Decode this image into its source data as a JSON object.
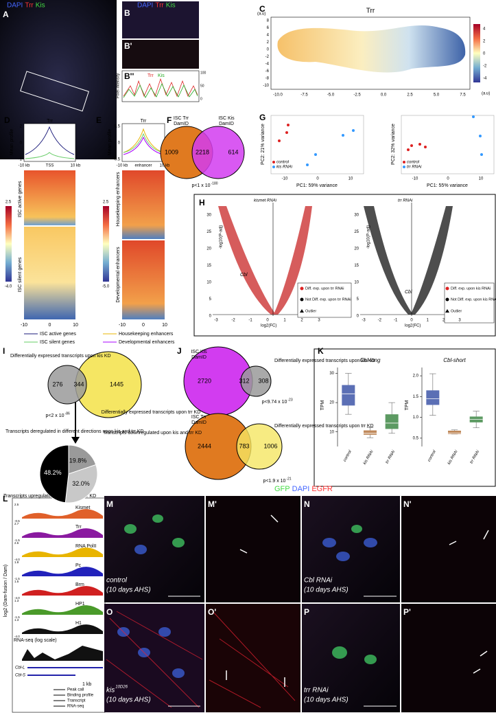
{
  "panel_labels": {
    "A": "A",
    "B": "B",
    "B1": "B'",
    "B2": "B''",
    "C": "C",
    "D": "D",
    "E": "E",
    "F": "F",
    "G": "G",
    "H": "H",
    "I": "I",
    "J": "J",
    "K": "K",
    "L": "L",
    "M": "M",
    "M1": "M'",
    "N": "N",
    "N1": "N'",
    "O": "O",
    "O1": "O'",
    "P": "P",
    "P1": "P'"
  },
  "stain_a": [
    "DAPI",
    "Trr",
    "Kis"
  ],
  "stain_b": [
    "DAPI",
    "Trr",
    "Kis"
  ],
  "b2": {
    "ylabel": "Pixel intensity",
    "legend": [
      "Trr",
      "Kis"
    ],
    "ticks": [
      "100",
      "50",
      "0"
    ]
  },
  "c": {
    "title": "Trr",
    "unit_y": "(a.u)",
    "unit_x": "(a.u)",
    "yticks": [
      "8",
      "6",
      "4",
      "2",
      "0",
      "-2",
      "-4",
      "-6",
      "-8",
      "-10"
    ],
    "xticks": [
      "-10.0",
      "-7.5",
      "-5.0",
      "-2.5",
      "0.0",
      "2.5",
      "5.0",
      "7.5"
    ],
    "colorbar": [
      "4",
      "2",
      "0",
      "-2",
      "-4"
    ]
  },
  "d": {
    "title": "Trr",
    "ylabel": "Mean profile",
    "yticks": [
      "2",
      "0",
      "-1"
    ],
    "xticks": [
      "-10 kb",
      "TSS",
      "10 kb"
    ],
    "colorbar": [
      "2.5",
      "-4.0"
    ],
    "row_labels": [
      "ISC active genes",
      "ISC silent genes"
    ],
    "heat_xticks": [
      "-10",
      "0",
      "10"
    ],
    "legend": [
      "ISC active genes",
      "ISC silent genes"
    ]
  },
  "e": {
    "title": "Trr",
    "ylabel": "Mean profile",
    "yticks": [
      "0.5",
      "0",
      "-0.5"
    ],
    "xticks": [
      "-10 kb",
      "enhancer",
      "10 kb"
    ],
    "colorbar": [
      "2.5",
      "-5.0"
    ],
    "row_labels": [
      "Housekeeping enhancers",
      "Developmental enhancers"
    ],
    "heat_xticks": [
      "-10",
      "0",
      "10"
    ],
    "legend": [
      "Housekeeping enhancers",
      "Developmental enhancers"
    ]
  },
  "f": {
    "left": [
      "ISC Trr",
      "DamID"
    ],
    "right": [
      "ISC Kis",
      "DamID"
    ],
    "counts": [
      "1009",
      "2218",
      "614"
    ],
    "p": {
      "base": "p<1 x 10",
      "exp": "-180"
    }
  },
  "g": [
    {
      "ylabel": "PC2: 21% variance",
      "xlabel": "PC1: 59% variance",
      "xticks": [
        "-10",
        "0",
        "10"
      ],
      "legend": [
        "control",
        "kis RNAi"
      ]
    },
    {
      "ylabel": "PC2: 32% variance",
      "xlabel": "PC1: 55% variance",
      "xticks": [
        "-10",
        "0",
        "10"
      ],
      "legend": [
        "control",
        "trr RNAi"
      ]
    }
  ],
  "h": [
    {
      "title": "kismet RNAi",
      "gene": "Cbl",
      "ylabel": "-log10(P-adj)",
      "xlabel": "log2(FC)",
      "yticks": [
        "30",
        "25",
        "20",
        "15",
        "10",
        "5",
        "0"
      ],
      "xticks": [
        "-3",
        "-2",
        "-1",
        "0",
        "1",
        "2",
        "3"
      ],
      "legend": [
        "Diff. exp. upon trr RNAi",
        "Not Diff. exp. upon trr RNAi",
        "Outlier"
      ]
    },
    {
      "title": "trr RNAi",
      "gene": "Cbl",
      "ylabel": "-log10(P-adj)",
      "xlabel": "log2(FC)",
      "yticks": [
        "30",
        "25",
        "20",
        "15",
        "10",
        "5",
        "0"
      ],
      "xticks": [
        "-3",
        "-2",
        "-1",
        "0",
        "1",
        "2",
        "3"
      ],
      "legend": [
        "Diff. exp. upon kis RNAi",
        "Not Diff. exp. upon kis RNAi",
        "Outlier"
      ]
    }
  ],
  "i": {
    "left": "Differentially expressed transcripts upon kis KD",
    "right": "Differentially expressed transcripts upon trr KD",
    "counts": [
      "276",
      "344",
      "1445"
    ],
    "p": {
      "base": "p<2 x 10",
      "exp": "-86"
    },
    "pie_labels": [
      "Transcripts deregulated in different directions upon kis and trr KD",
      "Transcripts upregulated upon kis and trr KD",
      "Transcripts downregulated upon kis and trr KD"
    ],
    "pie": {
      "values": [
        19.8,
        32.0,
        48.2
      ],
      "value_labels": [
        "19.8%",
        "32.0%",
        "48.2%"
      ],
      "colors": [
        "#9a9a9a",
        "#c8c8c8",
        "#000000"
      ]
    }
  },
  "j": {
    "top": {
      "left": [
        "ISC Kis",
        "DamID"
      ],
      "right": "Differentially expressed transcripts upon kis KD",
      "counts": [
        "2720",
        "312",
        "308"
      ],
      "p": {
        "base": "p<9.74 x 10",
        "exp": "-23"
      }
    },
    "bottom": {
      "left": [
        "ISC Trr",
        "DamID"
      ],
      "right": "Differentially expressed transcripts upon trr KD",
      "counts": [
        "2444",
        "783",
        "1006"
      ],
      "p": {
        "base": "p<1.9 x 10",
        "exp": "-21"
      }
    }
  },
  "k": {
    "categories": [
      "control",
      "kis RNAi",
      "trr RNAi"
    ],
    "colors": [
      "#5b6fb5",
      "#c08a5c",
      "#5c9a62"
    ],
    "plots": [
      {
        "title": "Cbl-long",
        "ylabel": "TPM",
        "ylim": [
          5,
          32
        ],
        "yticks": [
          10,
          20,
          30
        ],
        "boxes": [
          {
            "min": 16,
            "q1": 19,
            "median": 23,
            "q3": 26,
            "max": 30
          },
          {
            "min": 8,
            "q1": 9,
            "median": 9.5,
            "q3": 10.5,
            "max": 11.5
          },
          {
            "min": 9.5,
            "q1": 11,
            "median": 13,
            "q3": 16,
            "max": 20
          }
        ]
      },
      {
        "title": "Cbl-short",
        "ylabel": "TPM",
        "ylim": [
          0.3,
          2.2
        ],
        "yticks": [
          {
            "value": 0.5,
            "label": "0.5"
          },
          {
            "value": 1,
            "label": "1.0"
          },
          {
            "value": 1.5,
            "label": "1.5"
          },
          {
            "value": 2,
            "label": "2.0"
          }
        ],
        "boxes": [
          {
            "min": 1.05,
            "q1": 1.3,
            "median": 1.45,
            "q3": 1.65,
            "max": 2.05
          },
          {
            "min": 0.6,
            "q1": 0.6,
            "median": 0.62,
            "q3": 0.68,
            "max": 0.7
          },
          {
            "min": 0.75,
            "q1": 0.88,
            "median": 0.95,
            "q3": 1.02,
            "max": 1.15
          }
        ]
      }
    ]
  },
  "l": {
    "ylabel": "log2 (Dam-fusion / Dam)",
    "tracks": [
      "Kismet",
      "Trr",
      "RNA PolII",
      "Pc",
      "Brm",
      "HP1",
      "H1"
    ],
    "ranges": [
      [
        "2.5",
        "-0.5"
      ],
      [
        "2.7",
        "-1.5"
      ],
      [
        "2.5",
        "-4.0"
      ],
      [
        "1.8",
        "-1.5"
      ],
      [
        "1.5",
        "-4.0"
      ],
      [
        "1.3",
        "-1.5"
      ],
      [
        "1.3",
        "-4.0"
      ]
    ],
    "rnaseq": "RNA-seq (log scale)",
    "genes": [
      "Cbl-L",
      "Cbl-S"
    ],
    "scale": "1 kb",
    "legend": [
      "Peak call",
      "Binding profile",
      "Transcript",
      "RNA-seq"
    ]
  },
  "micro": {
    "header": [
      "GFP",
      "DAPI",
      "EGFR"
    ],
    "M": [
      "control",
      "(10 days AHS)"
    ],
    "N": [
      "Cbl RNAi",
      "(10 days AHS)"
    ],
    "O": [
      "kis",
      "10D26",
      "(10 days AHS)"
    ],
    "P": [
      "trr RNAi",
      "(10 days AHS)"
    ]
  }
}
